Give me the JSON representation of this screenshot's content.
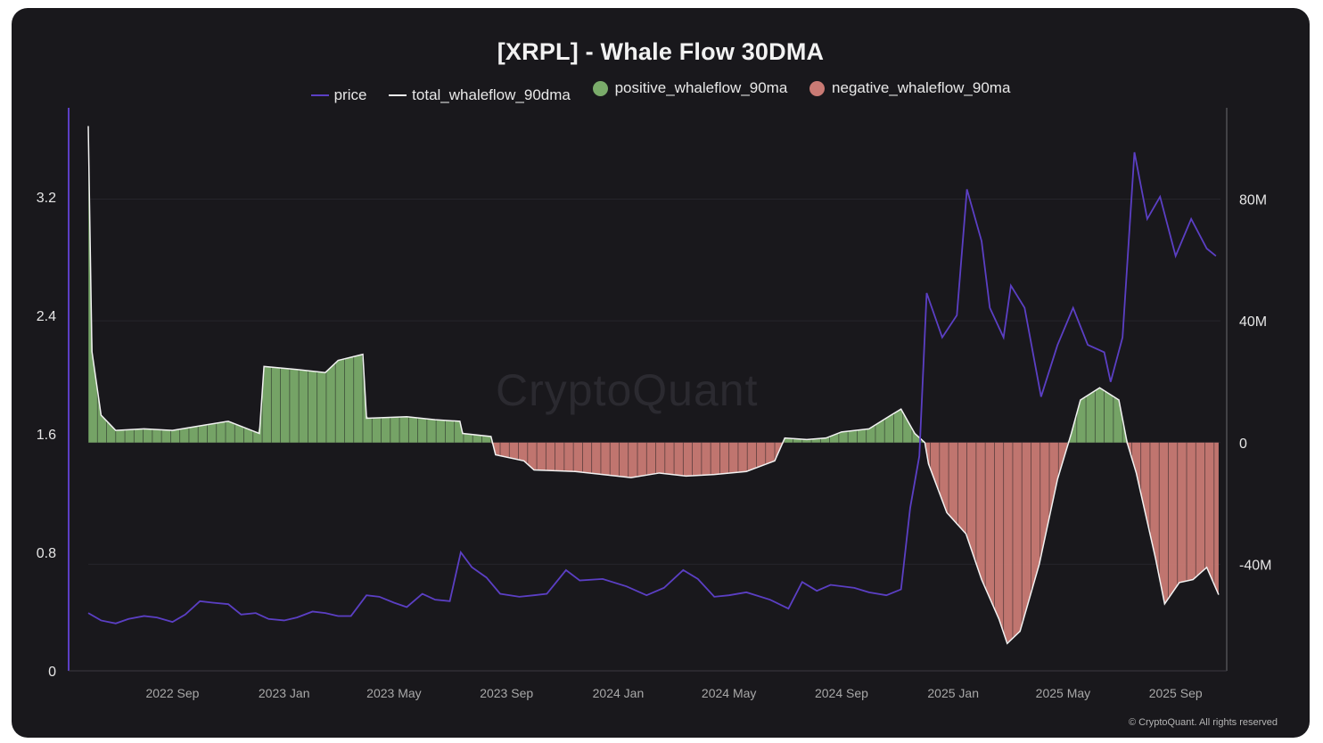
{
  "chart_data": {
    "type": "bar",
    "title": "[XRPL] - Whale Flow 30DMA",
    "legend_placement": "top",
    "series": [
      {
        "name": "price",
        "type": "line",
        "axis": "left",
        "color": "#5b3fc4"
      },
      {
        "name": "total_whaleflow_90dma",
        "type": "line",
        "axis": "right",
        "color": "#f2f2f2"
      },
      {
        "name": "positive_whaleflow_90ma",
        "type": "bar",
        "axis": "right",
        "color": "#7aab6a"
      },
      {
        "name": "negative_whaleflow_90ma",
        "type": "bar",
        "axis": "right",
        "color": "#c97a74"
      }
    ],
    "x_range": [
      "2022-06-01",
      "2025-10-20"
    ],
    "x_ticks": [
      {
        "label": "2022 Sep",
        "date": "2022-09-01"
      },
      {
        "label": "2023 Jan",
        "date": "2023-01-01"
      },
      {
        "label": "2023 May",
        "date": "2023-05-01"
      },
      {
        "label": "2023 Sep",
        "date": "2023-09-01"
      },
      {
        "label": "2024 Jan",
        "date": "2024-01-01"
      },
      {
        "label": "2024 May",
        "date": "2024-05-01"
      },
      {
        "label": "2024 Sep",
        "date": "2024-09-01"
      },
      {
        "label": "2025 Jan",
        "date": "2025-01-01"
      },
      {
        "label": "2025 May",
        "date": "2025-05-01"
      },
      {
        "label": "2025 Sep",
        "date": "2025-09-01"
      }
    ],
    "y_left": {
      "range": [
        0,
        3.8
      ],
      "ticks": [
        0,
        0.8,
        1.6,
        2.4,
        3.2
      ],
      "tick_labels": [
        "0",
        "0.8",
        "1.6",
        "2.4",
        "3.2"
      ]
    },
    "y_right": {
      "range": [
        -75000000,
        110000000
      ],
      "ticks": [
        80000000,
        40000000,
        0,
        -40000000
      ],
      "tick_labels": [
        "80M",
        "40M",
        "0",
        "-40M"
      ]
    },
    "grid": true,
    "price": [
      [
        "2022-06-01",
        0.39
      ],
      [
        "2022-06-15",
        0.34
      ],
      [
        "2022-07-01",
        0.32
      ],
      [
        "2022-07-15",
        0.35
      ],
      [
        "2022-08-01",
        0.37
      ],
      [
        "2022-08-15",
        0.36
      ],
      [
        "2022-09-01",
        0.33
      ],
      [
        "2022-09-15",
        0.38
      ],
      [
        "2022-10-01",
        0.47
      ],
      [
        "2022-10-15",
        0.46
      ],
      [
        "2022-11-01",
        0.45
      ],
      [
        "2022-11-15",
        0.38
      ],
      [
        "2022-12-01",
        0.39
      ],
      [
        "2022-12-15",
        0.35
      ],
      [
        "2023-01-01",
        0.34
      ],
      [
        "2023-01-15",
        0.36
      ],
      [
        "2023-02-01",
        0.4
      ],
      [
        "2023-02-15",
        0.39
      ],
      [
        "2023-03-01",
        0.37
      ],
      [
        "2023-03-15",
        0.37
      ],
      [
        "2023-04-01",
        0.51
      ],
      [
        "2023-04-15",
        0.5
      ],
      [
        "2023-05-01",
        0.46
      ],
      [
        "2023-05-15",
        0.43
      ],
      [
        "2023-06-01",
        0.52
      ],
      [
        "2023-06-15",
        0.48
      ],
      [
        "2023-07-01",
        0.47
      ],
      [
        "2023-07-13",
        0.8
      ],
      [
        "2023-07-25",
        0.7
      ],
      [
        "2023-08-10",
        0.63
      ],
      [
        "2023-08-25",
        0.52
      ],
      [
        "2023-09-15",
        0.5
      ],
      [
        "2023-10-01",
        0.51
      ],
      [
        "2023-10-15",
        0.52
      ],
      [
        "2023-11-05",
        0.68
      ],
      [
        "2023-11-20",
        0.61
      ],
      [
        "2023-12-15",
        0.62
      ],
      [
        "2024-01-10",
        0.57
      ],
      [
        "2024-02-01",
        0.51
      ],
      [
        "2024-02-20",
        0.56
      ],
      [
        "2024-03-12",
        0.68
      ],
      [
        "2024-03-28",
        0.62
      ],
      [
        "2024-04-15",
        0.5
      ],
      [
        "2024-05-01",
        0.51
      ],
      [
        "2024-05-20",
        0.53
      ],
      [
        "2024-06-15",
        0.48
      ],
      [
        "2024-07-05",
        0.42
      ],
      [
        "2024-07-20",
        0.6
      ],
      [
        "2024-08-05",
        0.54
      ],
      [
        "2024-08-20",
        0.58
      ],
      [
        "2024-09-15",
        0.56
      ],
      [
        "2024-10-01",
        0.53
      ],
      [
        "2024-10-20",
        0.51
      ],
      [
        "2024-11-05",
        0.55
      ],
      [
        "2024-11-15",
        1.1
      ],
      [
        "2024-11-25",
        1.45
      ],
      [
        "2024-12-03",
        2.55
      ],
      [
        "2024-12-20",
        2.25
      ],
      [
        "2025-01-05",
        2.4
      ],
      [
        "2025-01-16",
        3.25
      ],
      [
        "2025-02-01",
        2.9
      ],
      [
        "2025-02-10",
        2.45
      ],
      [
        "2025-02-25",
        2.25
      ],
      [
        "2025-03-05",
        2.6
      ],
      [
        "2025-03-20",
        2.45
      ],
      [
        "2025-04-07",
        1.85
      ],
      [
        "2025-04-25",
        2.2
      ],
      [
        "2025-05-12",
        2.45
      ],
      [
        "2025-05-28",
        2.2
      ],
      [
        "2025-06-15",
        2.15
      ],
      [
        "2025-06-22",
        1.95
      ],
      [
        "2025-07-05",
        2.25
      ],
      [
        "2025-07-18",
        3.5
      ],
      [
        "2025-08-01",
        3.05
      ],
      [
        "2025-08-15",
        3.2
      ],
      [
        "2025-09-01",
        2.8
      ],
      [
        "2025-09-18",
        3.05
      ],
      [
        "2025-10-05",
        2.85
      ],
      [
        "2025-10-15",
        2.8
      ]
    ],
    "total_whaleflow_90dma": [
      [
        "2022-06-01",
        104000000
      ],
      [
        "2022-06-05",
        30000000
      ],
      [
        "2022-06-15",
        9000000
      ],
      [
        "2022-07-01",
        4000000
      ],
      [
        "2022-08-01",
        4500000
      ],
      [
        "2022-09-01",
        4000000
      ],
      [
        "2022-10-01",
        5500000
      ],
      [
        "2022-11-01",
        7000000
      ],
      [
        "2022-12-05",
        3000000
      ],
      [
        "2022-12-10",
        25000000
      ],
      [
        "2023-01-15",
        24000000
      ],
      [
        "2023-02-15",
        23000000
      ],
      [
        "2023-03-01",
        27000000
      ],
      [
        "2023-03-28",
        29000000
      ],
      [
        "2023-04-01",
        8000000
      ],
      [
        "2023-05-15",
        8500000
      ],
      [
        "2023-06-15",
        7500000
      ],
      [
        "2023-07-12",
        7000000
      ],
      [
        "2023-07-15",
        3000000
      ],
      [
        "2023-08-15",
        2000000
      ],
      [
        "2023-08-20",
        -4000000
      ],
      [
        "2023-09-20",
        -6000000
      ],
      [
        "2023-10-01",
        -9000000
      ],
      [
        "2023-11-15",
        -9500000
      ],
      [
        "2023-12-15",
        -10500000
      ],
      [
        "2024-01-15",
        -11500000
      ],
      [
        "2024-02-15",
        -10000000
      ],
      [
        "2024-03-15",
        -11000000
      ],
      [
        "2024-04-15",
        -10500000
      ],
      [
        "2024-05-20",
        -9500000
      ],
      [
        "2024-06-20",
        -6000000
      ],
      [
        "2024-07-01",
        1500000
      ],
      [
        "2024-07-25",
        1000000
      ],
      [
        "2024-08-15",
        1500000
      ],
      [
        "2024-09-01",
        3500000
      ],
      [
        "2024-10-01",
        4500000
      ],
      [
        "2024-10-25",
        9000000
      ],
      [
        "2024-11-05",
        11000000
      ],
      [
        "2024-11-20",
        3000000
      ],
      [
        "2024-12-01",
        0
      ],
      [
        "2024-12-05",
        -7000000
      ],
      [
        "2024-12-25",
        -23000000
      ],
      [
        "2025-01-15",
        -30000000
      ],
      [
        "2025-02-01",
        -45000000
      ],
      [
        "2025-02-20",
        -58000000
      ],
      [
        "2025-03-01",
        -66000000
      ],
      [
        "2025-03-15",
        -62000000
      ],
      [
        "2025-04-05",
        -40000000
      ],
      [
        "2025-04-25",
        -12000000
      ],
      [
        "2025-05-10",
        3000000
      ],
      [
        "2025-05-20",
        14000000
      ],
      [
        "2025-06-10",
        18000000
      ],
      [
        "2025-07-01",
        14000000
      ],
      [
        "2025-07-10",
        0
      ],
      [
        "2025-07-20",
        -10000000
      ],
      [
        "2025-08-10",
        -38000000
      ],
      [
        "2025-08-20",
        -53000000
      ],
      [
        "2025-09-05",
        -46000000
      ],
      [
        "2025-09-20",
        -45000000
      ],
      [
        "2025-10-05",
        -41000000
      ],
      [
        "2025-10-18",
        -50000000
      ]
    ]
  },
  "watermark": "CryptoQuant",
  "copyright": "© CryptoQuant. All rights reserved"
}
